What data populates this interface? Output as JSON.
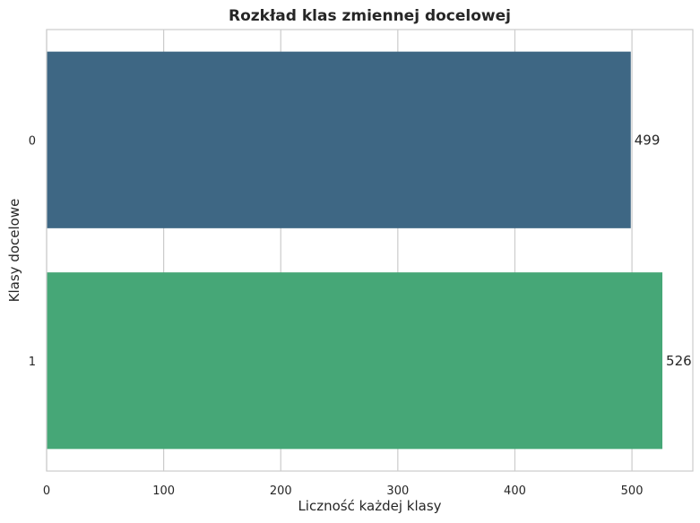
{
  "chart_data": {
    "type": "bar",
    "orientation": "horizontal",
    "title": "Rozkład klas zmiennej docelowej",
    "xlabel": "Liczność każdej klasy",
    "ylabel": "Klasy docelowe",
    "categories": [
      "0",
      "1"
    ],
    "values": [
      499,
      526
    ],
    "data_labels": [
      "499",
      "526"
    ],
    "colors": [
      "#3e6784",
      "#46a777"
    ],
    "xlim": [
      0,
      552
    ],
    "xticks": [
      0,
      100,
      200,
      300,
      400,
      500
    ],
    "grid": true
  }
}
